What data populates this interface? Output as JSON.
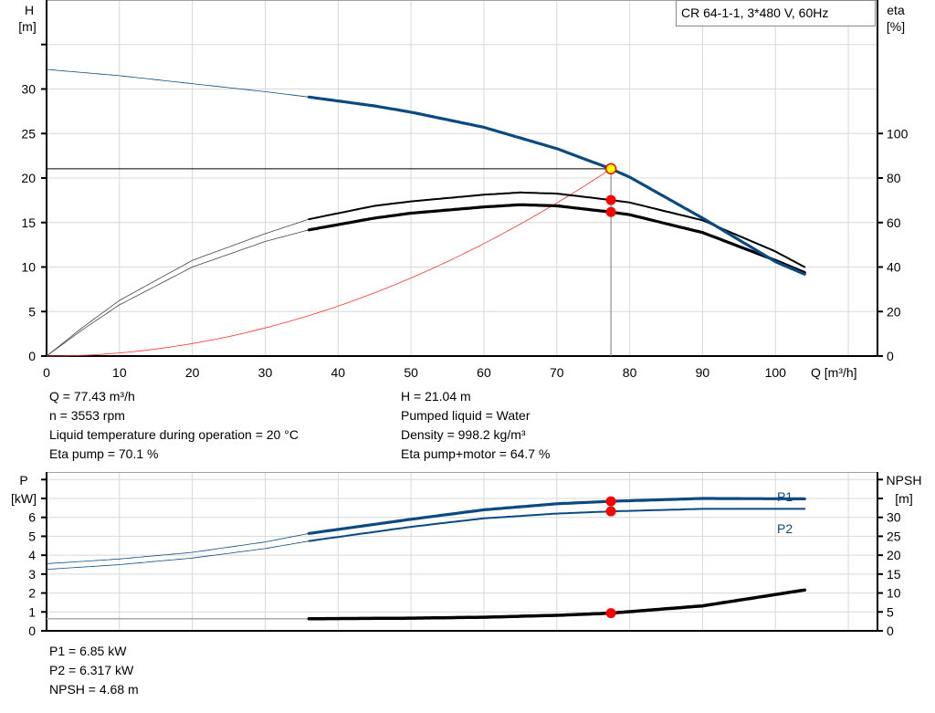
{
  "chart_data": [
    {
      "type": "line",
      "legend_box": "CR 64-1-1, 3*480 V, 60Hz",
      "xlabel": "Q [m³/h]",
      "ylabel_left": [
        "H",
        "[m]"
      ],
      "ylabel_right": [
        "eta",
        "[%]"
      ],
      "xlim": [
        0,
        114
      ],
      "ylim_left": [
        0,
        40
      ],
      "ylim_right": [
        0,
        160
      ],
      "xticks": [
        0,
        10,
        20,
        30,
        40,
        50,
        60,
        70,
        80,
        90,
        100
      ],
      "yticks_left": [
        0,
        5,
        10,
        15,
        20,
        25,
        30
      ],
      "yticks_right": [
        0,
        20,
        40,
        60,
        80,
        100
      ],
      "grid": true,
      "colors": {
        "head": "#0b4a80",
        "system": "#ff3030",
        "efficiency": "#000000",
        "duty_point": "#ff0000",
        "op_fill": "#ffff00"
      },
      "series": [
        {
          "axis": "left",
          "role": "head",
          "color": "#0b4a80",
          "operating_range_start": 36,
          "x": [
            0,
            10,
            20,
            30,
            36,
            45,
            50,
            60,
            70,
            77.43,
            80,
            90,
            100,
            104
          ],
          "y": [
            32.2,
            31.5,
            30.6,
            29.7,
            29.1,
            28.1,
            27.4,
            25.7,
            23.3,
            21.04,
            20.1,
            15.5,
            10.6,
            9.2
          ]
        },
        {
          "axis": "right",
          "role": "eta-pump",
          "color": "#000000",
          "operating_range_start": 36,
          "x": [
            0,
            5,
            10,
            20,
            30,
            36,
            45,
            50,
            60,
            65,
            70,
            77.43,
            80,
            90,
            100,
            104
          ],
          "y": [
            0,
            13,
            25,
            43,
            55,
            61.5,
            67.5,
            69.5,
            72.5,
            73.5,
            73,
            70.1,
            69,
            61,
            47,
            40
          ]
        },
        {
          "axis": "right",
          "role": "eta-pump-motor",
          "color": "#000000",
          "operating_range_start": 36,
          "x": [
            0,
            5,
            10,
            20,
            30,
            36,
            45,
            50,
            60,
            65,
            70,
            77.43,
            80,
            90,
            100,
            104
          ],
          "y": [
            0,
            12,
            23,
            40,
            51.5,
            56.7,
            62,
            64.2,
            67,
            68,
            67.5,
            64.7,
            63.5,
            55.5,
            43,
            37.5
          ]
        }
      ],
      "system_curve": {
        "axis": "left",
        "color": "#ff3030",
        "through": [
          77.43,
          21.04
        ]
      },
      "duty_point": {
        "Q": 77.43,
        "H": 21.04,
        "eta_pump": 70.1,
        "eta_pump_motor": 64.7
      }
    },
    {
      "type": "line",
      "ylabel_left": [
        "P",
        "[kW]"
      ],
      "ylabel_right": [
        "NPSH",
        "[m]"
      ],
      "xlim": [
        0,
        114
      ],
      "ylim_left": [
        0,
        8.4
      ],
      "ylim_right": [
        0,
        42
      ],
      "yticks_left": [
        0,
        1,
        2,
        3,
        4,
        5,
        6
      ],
      "yticks_right": [
        0,
        5,
        10,
        15,
        20,
        25,
        30
      ],
      "grid": true,
      "series": [
        {
          "name": "P1",
          "axis": "left",
          "color": "#0b4a80",
          "operating_range_start": 36,
          "x": [
            0,
            10,
            20,
            30,
            36,
            50,
            60,
            70,
            77.43,
            90,
            104
          ],
          "y": [
            3.55,
            3.8,
            4.15,
            4.7,
            5.15,
            5.9,
            6.4,
            6.72,
            6.85,
            7.0,
            6.98
          ]
        },
        {
          "name": "P2",
          "axis": "left",
          "color": "#0b4a80",
          "operating_range_start": 36,
          "x": [
            0,
            10,
            20,
            30,
            36,
            50,
            60,
            70,
            77.43,
            90,
            104
          ],
          "y": [
            3.25,
            3.5,
            3.85,
            4.35,
            4.75,
            5.5,
            5.95,
            6.2,
            6.317,
            6.45,
            6.45
          ]
        },
        {
          "axis": "right",
          "role": "npsh",
          "color": "#000000",
          "operating_range_start": 36,
          "x": [
            0,
            36,
            50,
            60,
            70,
            77.43,
            90,
            104
          ],
          "y": [
            3.2,
            3.2,
            3.35,
            3.6,
            4.1,
            4.68,
            6.6,
            10.8
          ]
        }
      ],
      "duty_point": {
        "Q": 77.43,
        "P1": 6.85,
        "P2": 6.317,
        "NPSH": 4.68
      }
    }
  ],
  "info_top_left": [
    "Q = 77.43 m³/h",
    "n = 3553 rpm",
    "Liquid temperature during operation = 20 °C",
    "Eta pump = 70.1 %"
  ],
  "info_top_right": [
    "H = 21.04 m",
    "Pumped liquid = Water",
    "Density = 998.2 kg/m³",
    "Eta pump+motor = 64.7 %"
  ],
  "info_bottom": [
    "P1 = 6.85 kW",
    "P2 = 6.317 kW",
    "NPSH = 4.68 m"
  ]
}
